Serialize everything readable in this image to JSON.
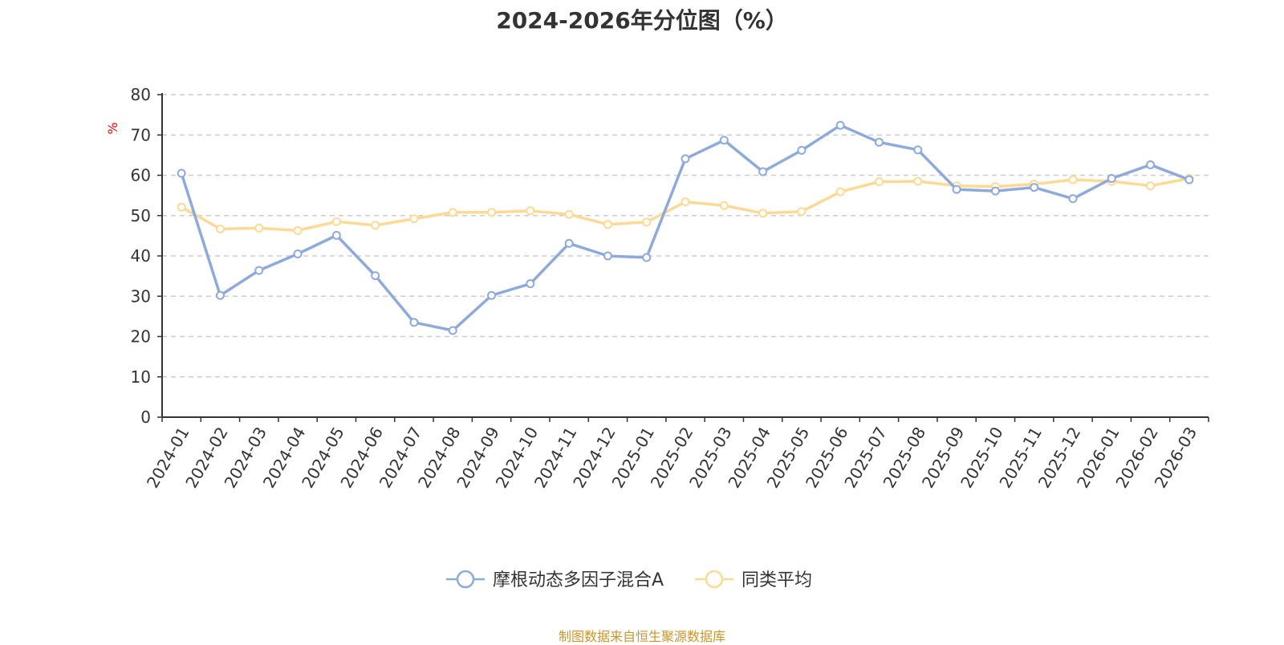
{
  "title": "2024-2026年分位图（%）",
  "source_text": "制图数据来自恒生聚源数据库",
  "chart_data": {
    "type": "line",
    "title": "2024-2026年分位图（%）",
    "ylabel": "%",
    "xlabel": "",
    "ylim": [
      0,
      80
    ],
    "yticks": [
      0,
      10,
      20,
      30,
      40,
      50,
      60,
      70,
      80
    ],
    "grid": true,
    "legend_position": "bottom-center",
    "categories": [
      "2024-01",
      "2024-02",
      "2024-03",
      "2024-04",
      "2024-05",
      "2024-06",
      "2024-07",
      "2024-08",
      "2024-09",
      "2024-10",
      "2024-11",
      "2024-12",
      "2025-01",
      "2025-02",
      "2025-03",
      "2025-04",
      "2025-05",
      "2025-06",
      "2025-07",
      "2025-08",
      "2025-09",
      "2025-10",
      "2025-11",
      "2025-12",
      "2026-01",
      "2026-02",
      "2026-03"
    ],
    "series": [
      {
        "name": "摩根动态多因子混合A",
        "color": "#8eaadb",
        "values": [
          60.5,
          30.2,
          36.4,
          40.5,
          45.1,
          35.1,
          23.5,
          21.5,
          30.2,
          33.1,
          43.1,
          40.0,
          39.6,
          64.1,
          68.7,
          60.9,
          66.2,
          72.4,
          68.2,
          66.3,
          56.5,
          56.1,
          57.0,
          54.2,
          59.2,
          62.6,
          58.9
        ]
      },
      {
        "name": "同类平均",
        "color": "#fcd995",
        "values": [
          52.1,
          46.7,
          46.9,
          46.3,
          48.5,
          47.6,
          49.2,
          50.8,
          50.8,
          51.2,
          50.3,
          47.8,
          48.4,
          53.4,
          52.5,
          50.6,
          51.0,
          55.9,
          58.4,
          58.5,
          57.4,
          57.2,
          57.8,
          58.9,
          58.5,
          57.4,
          59.2
        ]
      }
    ]
  }
}
